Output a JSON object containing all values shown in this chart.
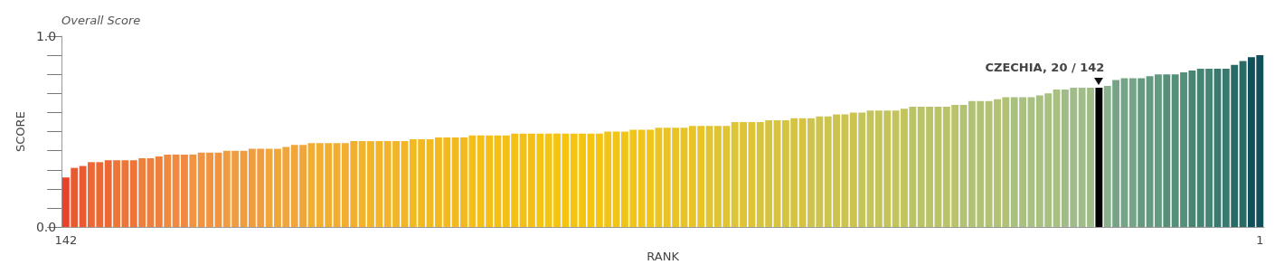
{
  "chart_data": {
    "type": "bar",
    "title": "Overall Score",
    "xlabel": "RANK",
    "ylabel": "SCORE",
    "categories": [
      "142",
      null,
      null,
      null,
      null,
      null,
      null,
      null,
      null,
      null,
      null,
      null,
      null,
      null,
      null,
      null,
      null,
      null,
      null,
      null,
      null,
      null,
      null,
      null,
      null,
      null,
      null,
      null,
      null,
      null,
      null,
      null,
      null,
      null,
      null,
      null,
      null,
      null,
      null,
      null,
      null,
      null,
      null,
      null,
      null,
      null,
      null,
      null,
      null,
      null,
      null,
      null,
      null,
      null,
      null,
      null,
      null,
      null,
      null,
      null,
      null,
      null,
      null,
      null,
      null,
      null,
      null,
      null,
      null,
      null,
      null,
      null,
      null,
      null,
      null,
      null,
      null,
      null,
      null,
      null,
      null,
      null,
      null,
      null,
      null,
      null,
      null,
      null,
      null,
      null,
      null,
      null,
      null,
      null,
      null,
      null,
      null,
      null,
      null,
      null,
      null,
      null,
      null,
      null,
      null,
      null,
      null,
      null,
      null,
      null,
      null,
      null,
      null,
      null,
      null,
      null,
      null,
      null,
      null,
      null,
      null,
      null,
      null,
      null,
      null,
      null,
      null,
      null,
      null,
      null,
      null,
      null,
      null,
      null,
      null,
      null,
      null,
      null,
      null,
      null,
      null,
      "1"
    ],
    "values": [
      0.26,
      0.31,
      0.32,
      0.34,
      0.34,
      0.35,
      0.35,
      0.35,
      0.35,
      0.36,
      0.36,
      0.37,
      0.38,
      0.38,
      0.38,
      0.38,
      0.39,
      0.39,
      0.39,
      0.4,
      0.4,
      0.4,
      0.41,
      0.41,
      0.41,
      0.41,
      0.42,
      0.43,
      0.43,
      0.44,
      0.44,
      0.44,
      0.44,
      0.44,
      0.45,
      0.45,
      0.45,
      0.45,
      0.45,
      0.45,
      0.45,
      0.46,
      0.46,
      0.46,
      0.47,
      0.47,
      0.47,
      0.47,
      0.48,
      0.48,
      0.48,
      0.48,
      0.48,
      0.49,
      0.49,
      0.49,
      0.49,
      0.49,
      0.49,
      0.49,
      0.49,
      0.49,
      0.49,
      0.49,
      0.5,
      0.5,
      0.5,
      0.51,
      0.51,
      0.51,
      0.52,
      0.52,
      0.52,
      0.52,
      0.53,
      0.53,
      0.53,
      0.53,
      0.53,
      0.55,
      0.55,
      0.55,
      0.55,
      0.56,
      0.56,
      0.56,
      0.57,
      0.57,
      0.57,
      0.58,
      0.58,
      0.59,
      0.59,
      0.6,
      0.6,
      0.61,
      0.61,
      0.61,
      0.61,
      0.62,
      0.63,
      0.63,
      0.63,
      0.63,
      0.63,
      0.64,
      0.64,
      0.66,
      0.66,
      0.66,
      0.67,
      0.68,
      0.68,
      0.68,
      0.68,
      0.69,
      0.7,
      0.72,
      0.72,
      0.73,
      0.73,
      0.73,
      0.73,
      0.74,
      0.77,
      0.78,
      0.78,
      0.78,
      0.79,
      0.8,
      0.8,
      0.8,
      0.81,
      0.82,
      0.83,
      0.83,
      0.83,
      0.83,
      0.85,
      0.87,
      0.89,
      0.9
    ],
    "colors": [
      "#e8432a",
      "#ea5a30",
      "#ea5a30",
      "#ec6834",
      "#ec6834",
      "#ec6834",
      "#ee7438",
      "#ee7438",
      "#ee7438",
      "#ef803c",
      "#ef803c",
      "#ef803c",
      "#f08a40",
      "#f08a40",
      "#f08a40",
      "#f09442",
      "#f09442",
      "#f09442",
      "#f09442",
      "#f09c40",
      "#f09c40",
      "#f09c40",
      "#f09c40",
      "#f09c40",
      "#f0a63a",
      "#f0a63a",
      "#f0a63a",
      "#f0a63a",
      "#f0a63a",
      "#f1ae30",
      "#f1ae30",
      "#f1ae30",
      "#f1ae30",
      "#f1ae30",
      "#f1ae30",
      "#f2b428",
      "#f2b428",
      "#f2b428",
      "#f2b428",
      "#f2b428",
      "#f2b428",
      "#f3ba20",
      "#f3ba20",
      "#f3ba20",
      "#f3ba20",
      "#f3ba20",
      "#f3ba20",
      "#f3ba20",
      "#f4c018",
      "#f4c018",
      "#f4c018",
      "#f4c018",
      "#f4c018",
      "#f4c018",
      "#f4c018",
      "#f4c018",
      "#f4c410",
      "#f4c410",
      "#f4c410",
      "#f4c410",
      "#f4c410",
      "#f4c410",
      "#f4c410",
      "#f4c410",
      "#f0c418",
      "#f0c418",
      "#f0c418",
      "#f0c418",
      "#f0c418",
      "#f0c418",
      "#e8c428",
      "#e8c428",
      "#e8c428",
      "#e8c428",
      "#e8c428",
      "#e8c428",
      "#dfc435",
      "#dfc435",
      "#dfc435",
      "#dfc435",
      "#dfc435",
      "#dfc435",
      "#d6c440",
      "#d6c440",
      "#d6c440",
      "#d6c440",
      "#d6c440",
      "#d6c440",
      "#cdc450",
      "#cdc450",
      "#cdc450",
      "#cdc450",
      "#cdc450",
      "#cdc450",
      "#c4c45c",
      "#c4c45c",
      "#c4c45c",
      "#c4c45c",
      "#c4c45c",
      "#c4c45c",
      "#bbc368",
      "#bbc368",
      "#bbc368",
      "#bbc368",
      "#bbc368",
      "#bbc368",
      "#b2c274",
      "#b2c274",
      "#b2c274",
      "#b2c274",
      "#b2c274",
      "#b2c274",
      "#a8c080",
      "#a8c080",
      "#a8c080",
      "#a8c080",
      "#a8c080",
      "#a8c080",
      "#a0bc88",
      "#a0bc88",
      "#a0bc88",
      "#a0bc88",
      "#000000",
      "#8ab08a",
      "#76a486",
      "#76a486",
      "#76a486",
      "#649a80",
      "#649a80",
      "#649a80",
      "#56907a",
      "#56907a",
      "#56907a",
      "#468474",
      "#468474",
      "#468474",
      "#3a7a6e",
      "#3a7a6e",
      "#2a6a66",
      "#2a6a66",
      "#10505a",
      "#10505a"
    ],
    "ylim": [
      0,
      1
    ],
    "yticks": [
      {
        "value": 0,
        "label": "0.0"
      },
      {
        "value": 0.1,
        "label": null
      },
      {
        "value": 0.2,
        "label": null
      },
      {
        "value": 0.3,
        "label": null
      },
      {
        "value": 0.4,
        "label": null
      },
      {
        "value": 0.5,
        "label": null
      },
      {
        "value": 0.6,
        "label": null
      },
      {
        "value": 0.7,
        "label": null
      },
      {
        "value": 0.8,
        "label": null
      },
      {
        "value": 0.9,
        "label": null
      },
      {
        "value": 1,
        "label": "1.0"
      }
    ],
    "annotations": [
      "CZECHIA, 20 / 142"
    ]
  }
}
